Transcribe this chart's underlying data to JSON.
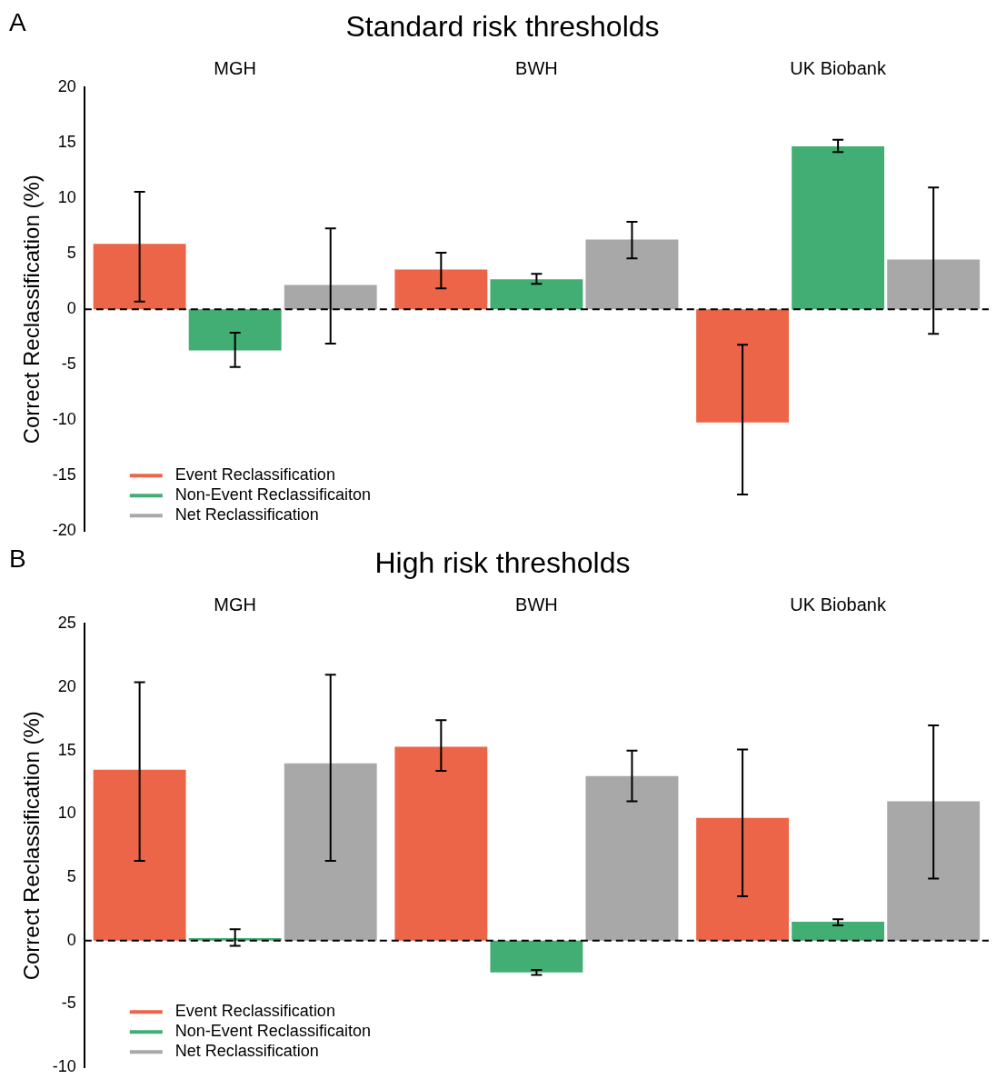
{
  "chart_data": [
    {
      "type": "bar",
      "title": "Standard risk thresholds",
      "ylabel": "Correct Reclassification (%)",
      "annotations": [
        "A"
      ],
      "categories": [
        "MGH",
        "BWH",
        "UK Biobank"
      ],
      "series": [
        {
          "name": "Event Reclassification",
          "color": "#ec6548",
          "values": [
            5.9,
            3.6,
            -10.2
          ],
          "errors": [
            [
              0.7,
              10.6
            ],
            [
              1.9,
              5.1
            ],
            [
              -16.7,
              -3.2
            ]
          ]
        },
        {
          "name": "Non-Event Reclassificaiton",
          "color": "#42ae73",
          "values": [
            -3.7,
            2.7,
            14.7
          ],
          "errors": [
            [
              -5.2,
              -2.1
            ],
            [
              2.3,
              3.2
            ],
            [
              14.2,
              15.3
            ]
          ]
        },
        {
          "name": "Net Reclassification",
          "color": "#a8a8a8",
          "values": [
            2.2,
            6.3,
            4.5
          ],
          "errors": [
            [
              -3.1,
              7.3
            ],
            [
              4.6,
              7.9
            ],
            [
              -2.2,
              11.0
            ]
          ]
        }
      ],
      "ylim": [
        -20,
        20
      ],
      "yticks": [
        -20,
        -15,
        -10,
        -5,
        0,
        5,
        10,
        15,
        20
      ],
      "grid": false,
      "legend": "bottom left",
      "ref_lines": [
        {
          "axis": "y",
          "value": 0,
          "color": "#000000",
          "line_style": "dashed"
        }
      ]
    },
    {
      "type": "bar",
      "title": "High risk thresholds",
      "ylabel": "Correct Reclassification (%)",
      "annotations": [
        "B"
      ],
      "categories": [
        "MGH",
        "BWH",
        "UK Biobank"
      ],
      "series": [
        {
          "name": "Event Reclassification",
          "color": "#ec6548",
          "values": [
            13.5,
            15.3,
            9.7
          ],
          "errors": [
            [
              6.3,
              20.4
            ],
            [
              13.4,
              17.4
            ],
            [
              3.5,
              15.1
            ]
          ]
        },
        {
          "name": "Non-Event Reclassificaiton",
          "color": "#42ae73",
          "values": [
            0.2,
            -2.5,
            1.5
          ],
          "errors": [
            [
              -0.4,
              0.9
            ],
            [
              -2.7,
              -2.3
            ],
            [
              1.2,
              1.7
            ]
          ]
        },
        {
          "name": "Net Reclassification",
          "color": "#a8a8a8",
          "values": [
            14.0,
            13.0,
            11.0
          ],
          "errors": [
            [
              6.3,
              21.0
            ],
            [
              11.0,
              15.0
            ],
            [
              4.9,
              17.0
            ]
          ]
        }
      ],
      "ylim": [
        -10,
        25
      ],
      "yticks": [
        -10,
        -5,
        0,
        5,
        10,
        15,
        20,
        25
      ],
      "grid": false,
      "legend": "bottom left",
      "ref_lines": [
        {
          "axis": "y",
          "value": 0,
          "color": "#000000",
          "line_style": "dashed"
        }
      ]
    }
  ]
}
